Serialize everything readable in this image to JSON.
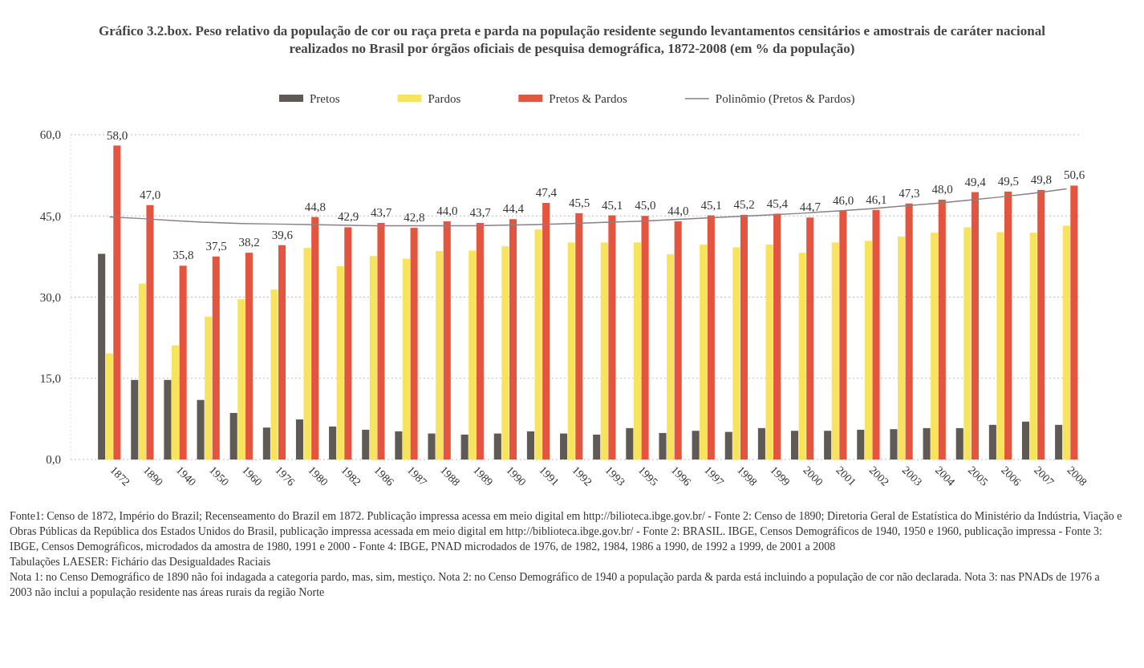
{
  "chart_data": {
    "type": "bar",
    "title": "Gráfico 3.2.box. Peso relativo da população de cor ou raça preta e parda na população residente segundo levantamentos censitários e amostrais de caráter nacional realizados no Brasil por órgãos oficiais de pesquisa demográfica, 1872-2008 (em % da população)",
    "categories": [
      "1872",
      "1890",
      "1940",
      "1950",
      "1960",
      "1976",
      "1980",
      "1982",
      "1986",
      "1987",
      "1988",
      "1989",
      "1990",
      "1991",
      "1992",
      "1993",
      "1995",
      "1996",
      "1997",
      "1998",
      "1999",
      "2000",
      "2001",
      "2002",
      "2003",
      "2004",
      "2005",
      "2006",
      "2007",
      "2008"
    ],
    "series": [
      {
        "name": "Pretos",
        "color": "#5f5a55",
        "values": [
          38.0,
          14.7,
          14.7,
          11.0,
          8.6,
          5.9,
          7.4,
          6.1,
          5.5,
          5.2,
          4.8,
          4.6,
          4.8,
          5.2,
          4.8,
          4.6,
          5.8,
          4.9,
          5.3,
          5.1,
          5.8,
          5.3,
          5.3,
          5.5,
          5.6,
          5.8,
          5.8,
          6.4,
          7.0,
          6.4
        ]
      },
      {
        "name": "Pardos",
        "color": "#f8e45c",
        "values": [
          19.6,
          32.5,
          21.1,
          26.4,
          29.6,
          31.4,
          39.1,
          35.7,
          37.6,
          37.1,
          38.5,
          38.6,
          39.4,
          42.5,
          40.1,
          40.1,
          40.1,
          37.9,
          39.7,
          39.2,
          39.7,
          38.2,
          40.1,
          40.4,
          41.2,
          41.9,
          42.9,
          42.0,
          41.9,
          43.2
        ]
      },
      {
        "name": "Pretos & Pardos",
        "color": "#e4553f",
        "values": [
          58.0,
          47.0,
          35.8,
          37.5,
          38.2,
          39.6,
          44.8,
          42.9,
          43.7,
          42.8,
          44.0,
          43.7,
          44.4,
          47.4,
          45.5,
          45.1,
          45.0,
          44.0,
          45.1,
          45.2,
          45.4,
          44.7,
          46.0,
          46.1,
          47.3,
          48.0,
          49.4,
          49.5,
          49.8,
          50.6
        ],
        "value_labels": [
          "58,0",
          "47,0",
          "35,8",
          "37,5",
          "38,2",
          "39,6",
          "44,8",
          "42,9",
          "43,7",
          "42,8",
          "44,0",
          "43,7",
          "44,4",
          "47,4",
          "45,5",
          "45,1",
          "45,0",
          "44,0",
          "45,1",
          "45,2",
          "45,4",
          "44,7",
          "46,0",
          "46,1",
          "47,3",
          "48,0",
          "49,4",
          "49,5",
          "49,8",
          "50,6"
        ]
      },
      {
        "name": "Polinômio (Pretos & Pardos)",
        "type": "line",
        "color": "#8a7f86",
        "values": [
          44.8,
          44.5,
          44.1,
          43.8,
          43.6,
          43.5,
          43.4,
          43.3,
          43.2,
          43.2,
          43.2,
          43.2,
          43.3,
          43.4,
          43.6,
          43.8,
          44.0,
          44.3,
          44.6,
          44.9,
          45.2,
          45.5,
          45.9,
          46.3,
          46.8,
          47.3,
          47.9,
          48.5,
          49.2,
          50.0
        ]
      }
    ],
    "ylim": [
      0,
      60
    ],
    "yticks": [
      {
        "value": 0,
        "label": "0,0"
      },
      {
        "value": 15,
        "label": "15,0"
      },
      {
        "value": 30,
        "label": "30,0"
      },
      {
        "value": 45,
        "label": "45,0"
      },
      {
        "value": 60,
        "label": "60,0"
      }
    ],
    "grid": "y",
    "legend": "top",
    "line_style": "solid",
    "marker": "none",
    "annotations": [
      "Fonte1: Censo de 1872, Império do Brazil; Recenseamento do Brazil em 1872. Publicação impressa acessa em meio digital em http://bilioteca.ibge.gov.br/ - Fonte 2: Censo de 1890; Diretoria Geral de Estatística do Ministério da Indústria, Viação e Obras Públicas da República dos Estados Unidos do Brasil, publicação impressa acessada em meio digital em http://biblioteca.ibge.gov.br/ - Fonte 2: BRASIL. IBGE, Censos Demográficos de 1940, 1950 e 1960, publicação impressa - Fonte 3: IBGE, Censos Demográficos, microdados da amostra de 1980, 1991 e 2000 - Fonte 4: IBGE, PNAD microdados de 1976, de 1982, 1984, 1986 a 1990, de 1992 a 1999, de 2001 a 2008",
      "Tabulações LAESER: Fichário das Desigualdades Raciais",
      "Nota 1: no Censo Demográfico de 1890 não foi indagada a categoria pardo, mas, sim, mestiço. Nota 2: no Censo Demográfico de 1940 a população parda & parda está incluindo a população de cor não declarada. Nota 3: nas PNADs de 1976 a 2003 não inclui a população residente nas áreas rurais da região Norte"
    ]
  }
}
